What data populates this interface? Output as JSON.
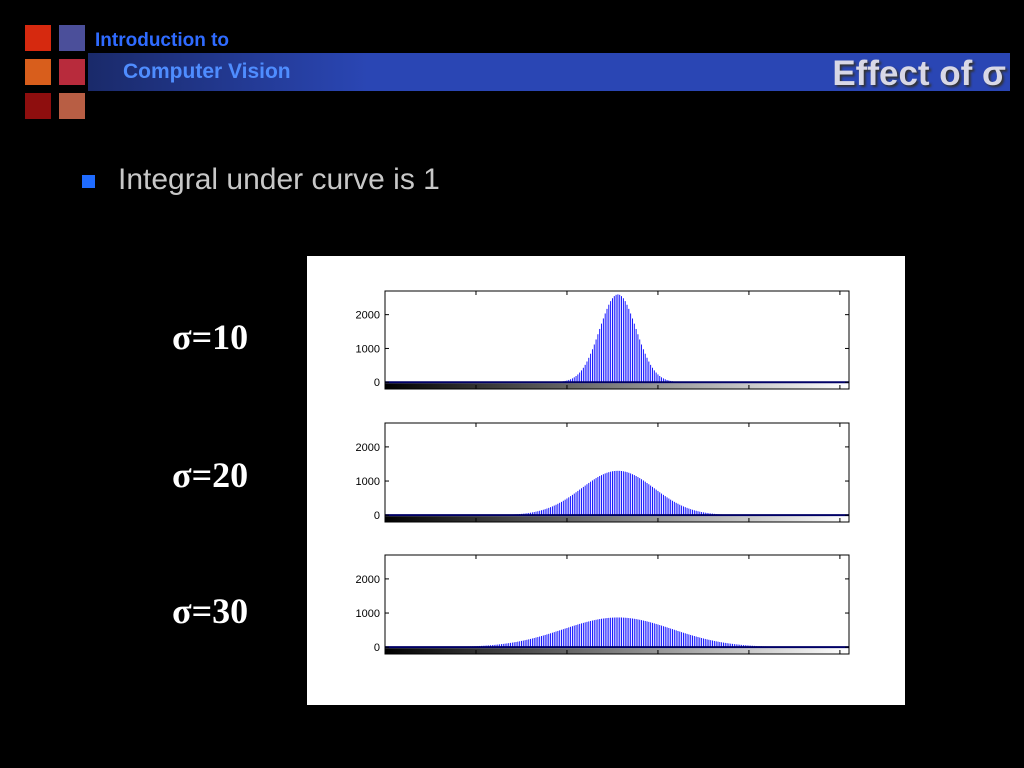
{
  "header": {
    "course_line1": "Introduction to",
    "course_line2": "Computer Vision",
    "title": "Effect of σ",
    "band_color": "#2a46b4",
    "logo_colors": [
      "#d6290f",
      "#4b4f9a",
      "#d85e1c",
      "#b82b3c",
      "#8e0e0e",
      "#b85e44"
    ]
  },
  "bullets": [
    {
      "text": "Integral under curve is 1"
    }
  ],
  "labels": [
    "σ=10",
    "σ=20",
    "σ=30"
  ],
  "chart_data": [
    {
      "type": "bar",
      "series": [
        {
          "mean": 128,
          "sigma": 10,
          "peak": 2600
        }
      ],
      "xlim": [
        0,
        255
      ],
      "ylim": [
        -200,
        2700
      ],
      "yticks": [
        0,
        1000,
        2000
      ],
      "color": "#0000ff",
      "gradient_strip": true
    },
    {
      "type": "bar",
      "series": [
        {
          "mean": 128,
          "sigma": 20,
          "peak": 1300
        }
      ],
      "xlim": [
        0,
        255
      ],
      "ylim": [
        -200,
        2700
      ],
      "yticks": [
        0,
        1000,
        2000
      ],
      "color": "#0000ff",
      "gradient_strip": true
    },
    {
      "type": "bar",
      "series": [
        {
          "mean": 128,
          "sigma": 30,
          "peak": 870
        }
      ],
      "xlim": [
        0,
        255
      ],
      "ylim": [
        -200,
        2700
      ],
      "yticks": [
        0,
        1000,
        2000
      ],
      "color": "#0000ff",
      "gradient_strip": true
    }
  ]
}
